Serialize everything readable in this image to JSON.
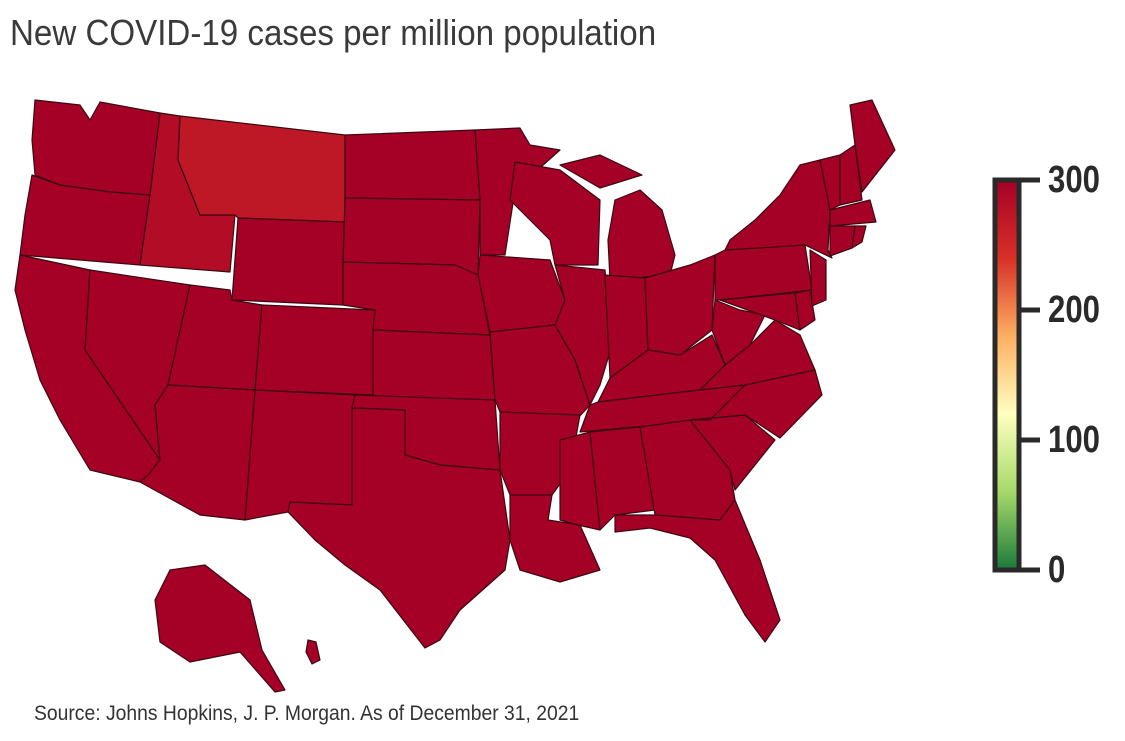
{
  "title": "New COVID-19 cases per million population",
  "source": "Source: Johns Hopkins, J. P. Morgan. As of December 31, 2021",
  "chart_data": {
    "type": "choropleth",
    "title": "New COVID-19 cases per million population",
    "colorbar": {
      "range": [
        0,
        300
      ],
      "ticks": [
        "0",
        "100",
        "200",
        "300"
      ],
      "colors": [
        "#1a7a3a",
        "#a6d96a",
        "#ffffbf",
        "#fdae61",
        "#d73027",
        "#a50026"
      ]
    },
    "values": {
      "Washington": 300,
      "Oregon": 300,
      "California": 300,
      "Nevada": 300,
      "Idaho": 285,
      "Montana": 270,
      "Wyoming": 300,
      "Utah": 300,
      "Arizona": 300,
      "Colorado": 300,
      "New Mexico": 300,
      "North Dakota": 300,
      "South Dakota": 300,
      "Nebraska": 300,
      "Kansas": 300,
      "Oklahoma": 300,
      "Texas": 300,
      "Minnesota": 300,
      "Iowa": 300,
      "Missouri": 300,
      "Arkansas": 300,
      "Louisiana": 300,
      "Wisconsin": 300,
      "Illinois": 300,
      "Michigan": 300,
      "Indiana": 300,
      "Ohio": 300,
      "Kentucky": 300,
      "Tennessee": 300,
      "Mississippi": 300,
      "Alabama": 300,
      "Georgia": 300,
      "Florida": 300,
      "South Carolina": 300,
      "North Carolina": 300,
      "Virginia": 300,
      "West Virginia": 300,
      "Pennsylvania": 300,
      "New York": 300,
      "Maryland": 300,
      "Delaware": 300,
      "New Jersey": 300,
      "Vermont": 300,
      "New Hampshire": 300,
      "Maine": 300,
      "Massachusetts": 300,
      "Connecticut": 300,
      "Rhode Island": 300,
      "Alaska": 300,
      "Hawaii": 300
    }
  }
}
